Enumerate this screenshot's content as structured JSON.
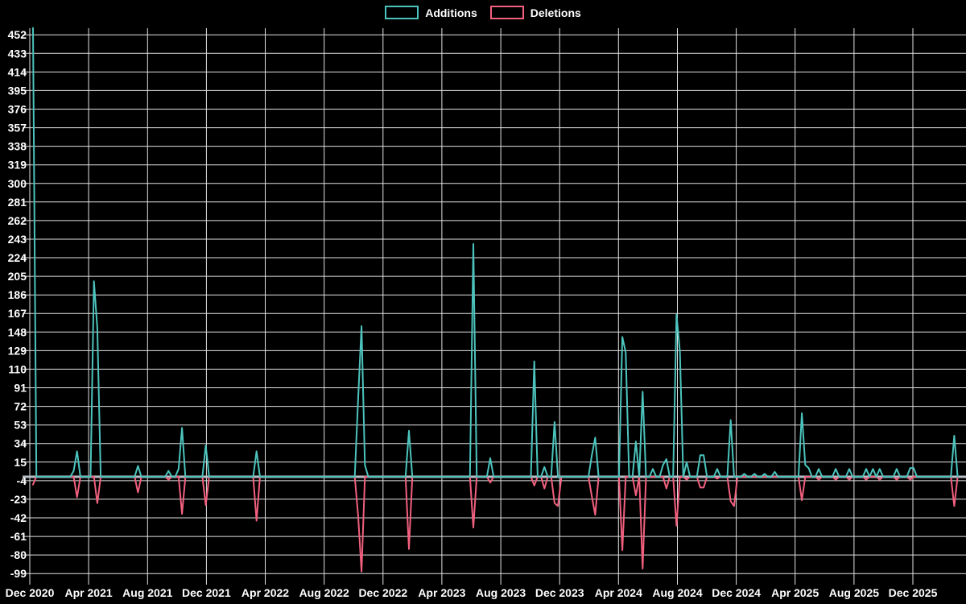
{
  "legend": {
    "position": "top-center",
    "items": [
      "Additions",
      "Deletions"
    ]
  },
  "chart_data": {
    "type": "line",
    "title": "",
    "xlabel": "",
    "ylabel": "",
    "grid": true,
    "legend_position": "top-center",
    "colors": {
      "background": "#000000",
      "grid": "#e2e2e2",
      "zero_line": "#b7bfc7",
      "text": "#ffffff",
      "additions": "#4cc4bd",
      "deletions": "#f2607e"
    },
    "x_axis": {
      "unit": "weeks",
      "tick_labels": [
        "Dec 2020",
        "Apr 2021",
        "Aug 2021",
        "Dec 2021",
        "Apr 2022",
        "Aug 2022",
        "Dec 2022",
        "Apr 2023",
        "Aug 2023",
        "Dec 2023",
        "Apr 2024",
        "Aug 2024",
        "Dec 2024",
        "Apr 2025",
        "Aug 2025",
        "Dec 2025"
      ]
    },
    "y_axis": {
      "ticks": [
        452,
        433,
        414,
        395,
        376,
        357,
        338,
        319,
        300,
        281,
        262,
        243,
        224,
        205,
        186,
        167,
        148,
        129,
        110,
        91,
        72,
        53,
        34,
        15,
        -4,
        -23,
        -42,
        -61,
        -80,
        -99
      ],
      "range": [
        -105,
        459
      ]
    },
    "weeks_total": 274,
    "series": [
      {
        "name": "Additions",
        "color": "#4cc4bd",
        "baseline": 0,
        "points": [
          [
            0,
            459
          ],
          [
            12,
            6
          ],
          [
            13,
            26
          ],
          [
            18,
            200
          ],
          [
            19,
            152
          ],
          [
            31,
            11
          ],
          [
            40,
            6
          ],
          [
            43,
            8
          ],
          [
            44,
            50
          ],
          [
            51,
            32
          ],
          [
            66,
            26
          ],
          [
            96,
            80
          ],
          [
            97,
            154
          ],
          [
            98,
            12
          ],
          [
            111,
            47
          ],
          [
            130,
            238
          ],
          [
            135,
            19
          ],
          [
            148,
            118
          ],
          [
            151,
            10
          ],
          [
            154,
            56
          ],
          [
            165,
            22
          ],
          [
            166,
            40
          ],
          [
            174,
            143
          ],
          [
            175,
            127
          ],
          [
            178,
            36
          ],
          [
            180,
            87
          ],
          [
            183,
            8
          ],
          [
            186,
            12
          ],
          [
            187,
            18
          ],
          [
            190,
            166
          ],
          [
            191,
            128
          ],
          [
            193,
            15
          ],
          [
            197,
            22
          ],
          [
            198,
            22
          ],
          [
            202,
            8
          ],
          [
            206,
            58
          ],
          [
            210,
            3
          ],
          [
            213,
            3
          ],
          [
            216,
            3
          ],
          [
            219,
            5
          ],
          [
            227,
            65
          ],
          [
            228,
            12
          ],
          [
            229,
            9
          ],
          [
            232,
            8
          ],
          [
            237,
            8
          ],
          [
            241,
            8
          ],
          [
            246,
            8
          ],
          [
            248,
            8
          ],
          [
            250,
            8
          ],
          [
            255,
            8
          ],
          [
            259,
            9
          ],
          [
            260,
            9
          ],
          [
            272,
            42
          ]
        ]
      },
      {
        "name": "Deletions",
        "color": "#f2607e",
        "baseline": 0,
        "points": [
          [
            0,
            -8
          ],
          [
            13,
            -21
          ],
          [
            19,
            -27
          ],
          [
            31,
            -16
          ],
          [
            40,
            -3
          ],
          [
            44,
            -38
          ],
          [
            51,
            -29
          ],
          [
            66,
            -45
          ],
          [
            96,
            -40
          ],
          [
            97,
            -97
          ],
          [
            111,
            -74
          ],
          [
            130,
            -52
          ],
          [
            135,
            -6
          ],
          [
            148,
            -9
          ],
          [
            151,
            -12
          ],
          [
            154,
            -27
          ],
          [
            155,
            -30
          ],
          [
            165,
            -20
          ],
          [
            166,
            -39
          ],
          [
            174,
            -75
          ],
          [
            178,
            -19
          ],
          [
            180,
            -94
          ],
          [
            187,
            -12
          ],
          [
            190,
            -50
          ],
          [
            193,
            -3
          ],
          [
            197,
            -11
          ],
          [
            198,
            -11
          ],
          [
            202,
            -2
          ],
          [
            206,
            -25
          ],
          [
            207,
            -30
          ],
          [
            227,
            -24
          ],
          [
            232,
            -3
          ],
          [
            237,
            -3
          ],
          [
            241,
            -3
          ],
          [
            246,
            -3
          ],
          [
            250,
            -3
          ],
          [
            255,
            -3
          ],
          [
            259,
            -3
          ],
          [
            272,
            -30
          ]
        ]
      }
    ]
  }
}
